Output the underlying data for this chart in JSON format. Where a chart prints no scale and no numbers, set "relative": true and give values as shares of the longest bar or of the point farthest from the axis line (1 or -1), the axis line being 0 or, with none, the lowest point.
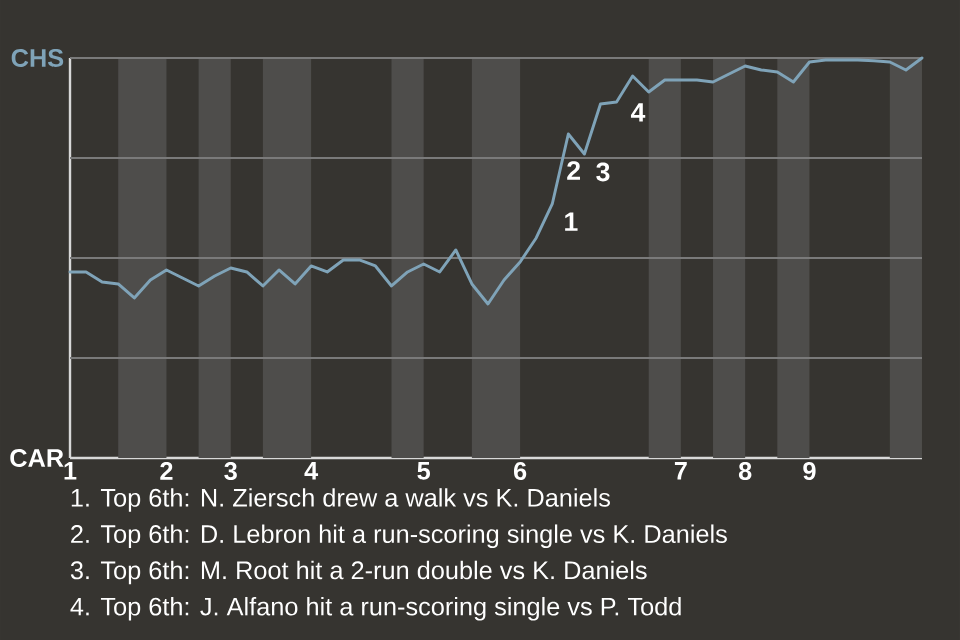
{
  "chart_data": {
    "type": "line",
    "relative": true,
    "categories": [
      "1",
      null,
      null,
      null,
      null,
      null,
      "2",
      null,
      null,
      null,
      "3",
      null,
      null,
      null,
      null,
      "4",
      null,
      null,
      null,
      null,
      null,
      null,
      "5",
      null,
      null,
      null,
      null,
      null,
      "6",
      null,
      null,
      null,
      null,
      null,
      null,
      null,
      null,
      null,
      "7",
      null,
      null,
      null,
      "8",
      null,
      null,
      null,
      "9",
      null,
      null,
      null,
      null,
      null,
      null,
      null
    ],
    "line_style": "solid",
    "series": [
      {
        "color": "#7fa3b8",
        "values": [
          0.465,
          0.465,
          0.44,
          0.435,
          0.4,
          0.445,
          0.47,
          0.45,
          0.43,
          0.455,
          0.475,
          0.465,
          0.43,
          0.47,
          0.435,
          0.48,
          0.465,
          0.495,
          0.495,
          0.48,
          0.43,
          0.465,
          0.485,
          0.465,
          0.52,
          0.435,
          0.385,
          0.445,
          0.49,
          0.55,
          0.635,
          0.81,
          0.76,
          0.885,
          0.89,
          0.955,
          0.915,
          0.945,
          0.945,
          0.945,
          0.94,
          0.96,
          0.98,
          0.97,
          0.965,
          0.94,
          0.99,
          0.995,
          0.995,
          0.995,
          0.993,
          0.99,
          0.97,
          1
        ]
      }
    ],
    "ref_lines": [
      {
        "axis": "y",
        "value": 0.25,
        "color": "#7a7a7a"
      },
      {
        "axis": "y",
        "value": 0.5,
        "color": "#7a7a7a"
      },
      {
        "axis": "y",
        "value": 0.75,
        "color": "#7a7a7a"
      },
      {
        "axis": "y",
        "value": 1,
        "color": "#7a7a7a"
      }
    ],
    "annotations": [
      "CHS",
      "CAR",
      "1",
      "2",
      "3",
      "4",
      "1. Top 6th: N. Ziersch drew a walk vs K. Daniels",
      "2. Top 6th: D. Lebron hit a run-scoring single vs K. Daniels",
      "3. Top 6th: M. Root hit a 2-run double vs K. Daniels",
      "4. Top 6th: J. Alfano hit a run-scoring single vs P. Todd"
    ]
  }
}
